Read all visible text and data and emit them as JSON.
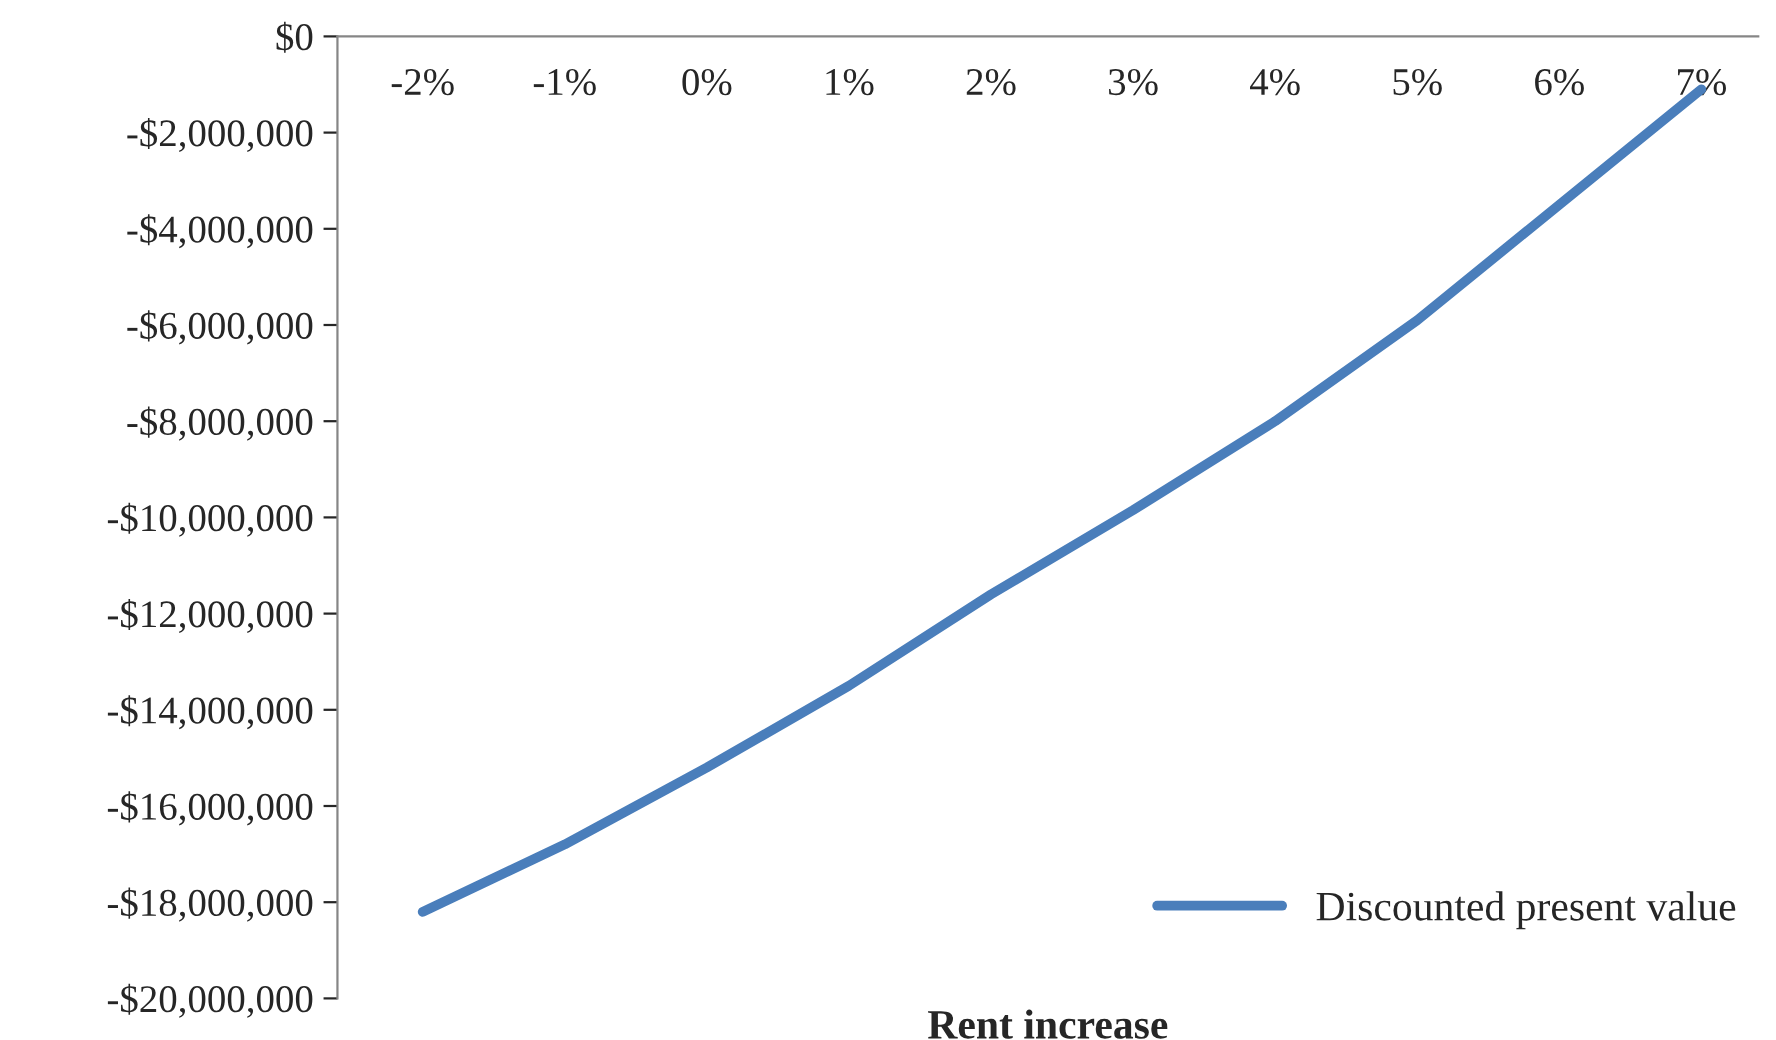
{
  "chart_data": {
    "type": "line",
    "xlabel": "Rent increase",
    "categories": [
      "-2%",
      "-1%",
      "0%",
      "1%",
      "2%",
      "3%",
      "4%",
      "5%",
      "6%",
      "7%"
    ],
    "series": [
      {
        "name": "Discounted present value",
        "color": "#4a7ebb",
        "values": [
          -18200000,
          -16800000,
          -15200000,
          -13500000,
          -11600000,
          -9850000,
          -8000000,
          -5900000,
          -3500000,
          -1100000
        ]
      }
    ],
    "ylim": [
      -20000000,
      0
    ],
    "yticks": [
      {
        "value": -20000000,
        "label": "-$20,000,000"
      },
      {
        "value": -18000000,
        "label": "-$18,000,000"
      },
      {
        "value": -16000000,
        "label": "-$16,000,000"
      },
      {
        "value": -14000000,
        "label": "-$14,000,000"
      },
      {
        "value": -12000000,
        "label": "-$12,000,000"
      },
      {
        "value": -10000000,
        "label": "-$10,000,000"
      },
      {
        "value": -8000000,
        "label": "-$8,000,000"
      },
      {
        "value": -6000000,
        "label": "-$6,000,000"
      },
      {
        "value": -4000000,
        "label": "-$4,000,000"
      },
      {
        "value": -2000000,
        "label": "-$2,000,000"
      },
      {
        "value": 0,
        "label": "$0"
      }
    ],
    "grid": false,
    "legend": "bottom right",
    "marker": "none",
    "line_style": "solid"
  }
}
